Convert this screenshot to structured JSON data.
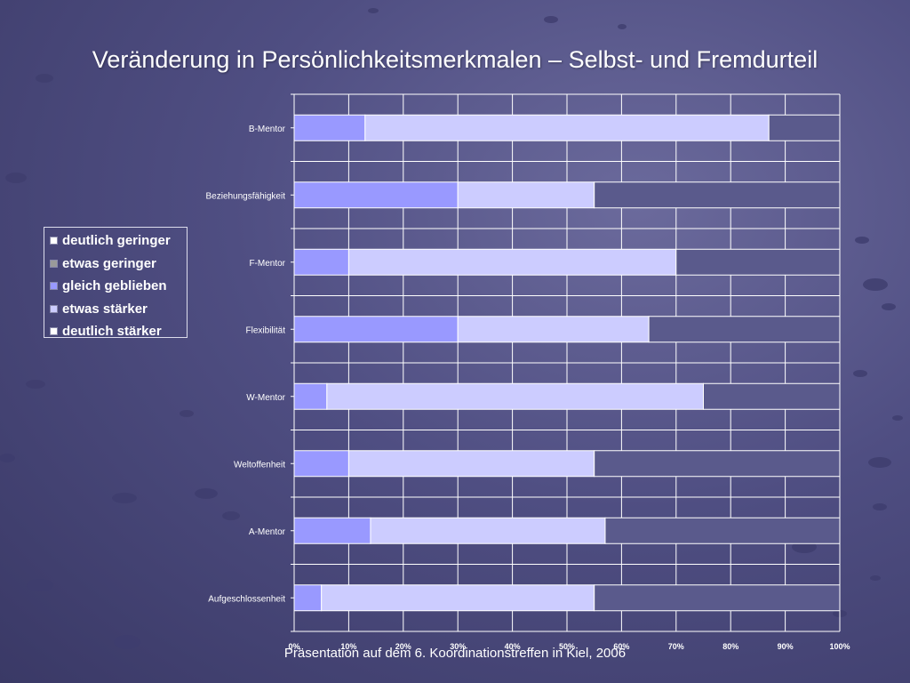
{
  "slide": {
    "title": "Veränderung in Persönlichkeitsmerkmalen – Selbst- und Fremdurteil",
    "footer": "Präsentation auf dem 6. Koordinationstreffen in Kiel, 2006"
  },
  "legend": {
    "items": [
      {
        "label": "deutlich geringer",
        "color": "#ffffff"
      },
      {
        "label": "etwas geringer",
        "color": "#9a9a9a"
      },
      {
        "label": "gleich geblieben",
        "color": "#9999ff"
      },
      {
        "label": "etwas stärker",
        "color": "#ccccff"
      },
      {
        "label": "deutlich stärker",
        "color": "#5a5a8c"
      }
    ]
  },
  "chart_data": {
    "type": "bar",
    "orientation": "horizontal",
    "stacked": "percent",
    "categories": [
      "B-Mentor",
      "Beziehungsfähigkeit",
      "F-Mentor",
      "Flexibilität",
      "W-Mentor",
      "Weltoffenheit",
      "A-Mentor",
      "Aufgeschlossenheit"
    ],
    "series": [
      {
        "name": "deutlich geringer",
        "color": "#ffffff",
        "values": [
          0,
          0,
          0,
          0,
          0,
          0,
          0,
          0
        ]
      },
      {
        "name": "etwas geringer",
        "color": "#9a9a9a",
        "values": [
          0,
          0,
          0,
          0,
          0,
          0,
          0,
          0
        ]
      },
      {
        "name": "gleich geblieben",
        "color": "#9999ff",
        "values": [
          13,
          30,
          10,
          30,
          6,
          10,
          14,
          5
        ]
      },
      {
        "name": "etwas stärker",
        "color": "#ccccff",
        "values": [
          74,
          25,
          60,
          35,
          69,
          45,
          43,
          50
        ]
      },
      {
        "name": "deutlich stärker",
        "color": "#5a5a8c",
        "values": [
          13,
          45,
          30,
          35,
          25,
          45,
          43,
          45
        ]
      }
    ],
    "x_ticks": [
      "0%",
      "10%",
      "20%",
      "30%",
      "40%",
      "50%",
      "60%",
      "70%",
      "80%",
      "90%",
      "100%"
    ],
    "xlim": [
      0,
      100
    ],
    "grid": true,
    "legend_position": "left"
  }
}
